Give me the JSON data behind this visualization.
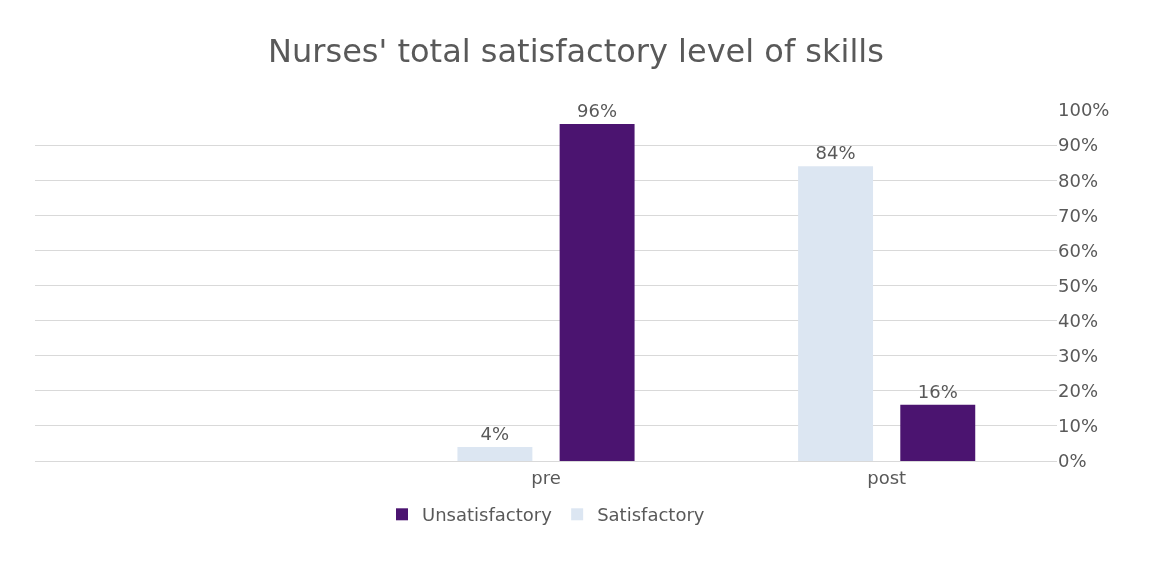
{
  "chart_data": {
    "type": "bar",
    "title": "Nurses' total satisfactory level of skills",
    "categories": [
      null,
      "pre",
      "post"
    ],
    "series": [
      {
        "name": "Satisfactory",
        "color": "#dce6f2",
        "values": [
          null,
          4,
          84
        ],
        "value_labels": [
          null,
          "4%",
          "84%"
        ]
      },
      {
        "name": "Unsatisfactory",
        "color": "#4b1470",
        "values": [
          null,
          96,
          16
        ],
        "value_labels": [
          null,
          "96%",
          "16%"
        ]
      }
    ],
    "ylim": [
      0,
      100
    ],
    "yticks": [
      {
        "value": 0,
        "label": "0%"
      },
      {
        "value": 10,
        "label": "10%"
      },
      {
        "value": 20,
        "label": "20%"
      },
      {
        "value": 30,
        "label": "30%"
      },
      {
        "value": 40,
        "label": "40%"
      },
      {
        "value": 50,
        "label": "50%"
      },
      {
        "value": 60,
        "label": "60%"
      },
      {
        "value": 70,
        "label": "70%"
      },
      {
        "value": 80,
        "label": "80%"
      },
      {
        "value": 90,
        "label": "90%"
      },
      {
        "value": 100,
        "label": "100%"
      }
    ],
    "grid": "y",
    "legend": "bottom"
  }
}
